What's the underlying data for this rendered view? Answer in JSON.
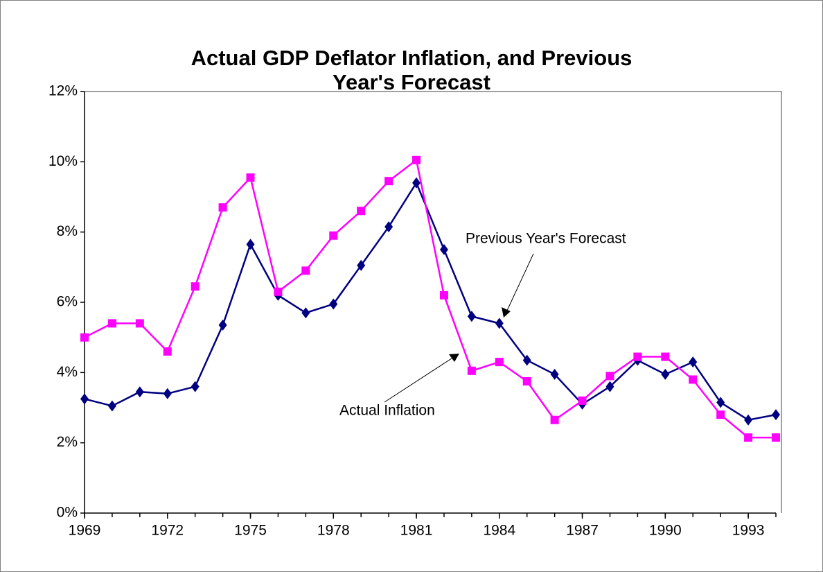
{
  "chart_data": {
    "type": "line",
    "title": [
      "Actual GDP Deflator Inflation, and Previous",
      "Year's Forecast"
    ],
    "x": [
      1969,
      1970,
      1971,
      1972,
      1973,
      1974,
      1975,
      1976,
      1977,
      1978,
      1979,
      1980,
      1981,
      1982,
      1983,
      1984,
      1985,
      1986,
      1987,
      1988,
      1989,
      1990,
      1991,
      1992,
      1993,
      1994
    ],
    "xlim": [
      1969,
      1994
    ],
    "xticks": [
      1969,
      1972,
      1975,
      1978,
      1981,
      1984,
      1987,
      1990,
      1993
    ],
    "ylim": [
      0,
      12
    ],
    "yticks": [
      {
        "value": 0,
        "label": "0%"
      },
      {
        "value": 2,
        "label": "2%"
      },
      {
        "value": 4,
        "label": "4%"
      },
      {
        "value": 6,
        "label": "6%"
      },
      {
        "value": 8,
        "label": "8%"
      },
      {
        "value": 10,
        "label": "10%"
      },
      {
        "value": 12,
        "label": "12%"
      }
    ],
    "grid": false,
    "series": [
      {
        "name": "Previous Year's Forecast",
        "color": "#000080",
        "marker": "diamond",
        "values": [
          3.25,
          3.05,
          3.45,
          3.4,
          3.6,
          5.35,
          7.65,
          6.2,
          5.7,
          5.95,
          7.05,
          8.15,
          9.4,
          7.5,
          5.6,
          5.4,
          4.35,
          3.95,
          3.1,
          3.6,
          4.35,
          3.95,
          4.3,
          3.15,
          2.65,
          2.8
        ]
      },
      {
        "name": "Actual Inflation",
        "color": "#ff00ff",
        "marker": "square",
        "values": [
          5.0,
          5.4,
          5.4,
          4.6,
          6.45,
          8.7,
          9.55,
          6.3,
          6.9,
          7.9,
          8.6,
          9.45,
          10.05,
          6.2,
          4.05,
          4.3,
          3.75,
          2.65,
          3.2,
          3.9,
          4.45,
          4.45,
          3.8,
          2.8,
          2.15,
          2.15
        ]
      }
    ]
  }
}
